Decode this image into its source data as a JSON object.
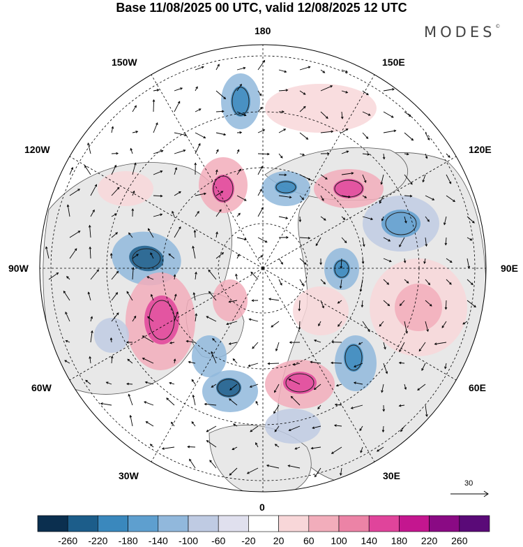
{
  "header": {
    "title": "Base 11/08/2025 00 UTC, valid 12/08/2025 12 UTC",
    "brand": "MODES",
    "brand_mark": "©"
  },
  "map": {
    "projection": "north polar stereographic",
    "longitude_labels": {
      "top": "180",
      "bottom": "0",
      "left": "90W",
      "right": "90E",
      "upper_left_1": "150W",
      "upper_left_2": "120W",
      "upper_right_1": "150E",
      "upper_right_2": "120E",
      "lower_left_1": "60W",
      "lower_left_2": "30W",
      "lower_right_1": "60E",
      "lower_right_2": "30E"
    },
    "reference_vector_label": "30"
  },
  "colorbar": {
    "ticks": [
      "-260",
      "-220",
      "-180",
      "-140",
      "-100",
      "-60",
      "-20",
      "20",
      "60",
      "100",
      "140",
      "180",
      "220",
      "260"
    ],
    "colors": [
      "#0b2f4f",
      "#1c5d8a",
      "#3a88bd",
      "#5e9fcf",
      "#91b8dc",
      "#bfcbe3",
      "#e0e0ee",
      "#ffffff",
      "#f8d7d9",
      "#f2adbb",
      "#ec83a6",
      "#e0449b",
      "#c4168f",
      "#8a0a84",
      "#5a0a78"
    ]
  },
  "colors": {
    "land": "#e8e8e8",
    "coast": "#555555",
    "grid": "#000000"
  }
}
